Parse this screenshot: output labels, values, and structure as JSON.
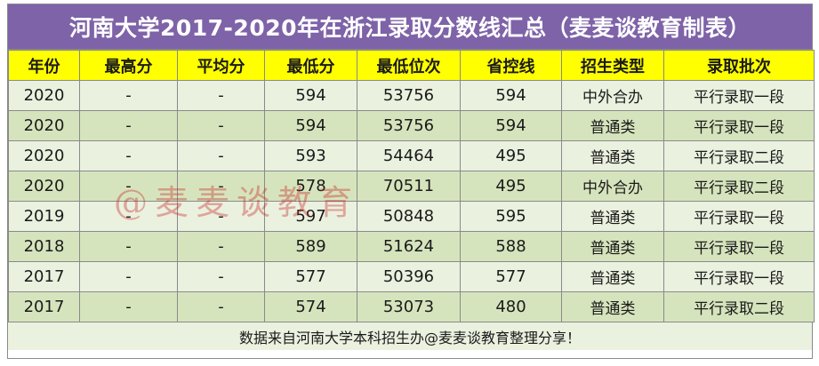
{
  "title": "河南大学2017-2020年在浙江录取分数线汇总（麦麦谈教育制表）",
  "columns": [
    "年份",
    "最高分",
    "平均分",
    "最低分",
    "最低位次",
    "省控线",
    "招生类型",
    "录取批次"
  ],
  "rows": [
    {
      "year": "2020",
      "max": "-",
      "avg": "-",
      "min": "594",
      "rank": "53756",
      "control": "594",
      "type": "中外合办",
      "batch": "平行录取一段"
    },
    {
      "year": "2020",
      "max": "-",
      "avg": "-",
      "min": "594",
      "rank": "53756",
      "control": "594",
      "type": "普通类",
      "batch": "平行录取一段"
    },
    {
      "year": "2020",
      "max": "-",
      "avg": "-",
      "min": "593",
      "rank": "54464",
      "control": "495",
      "type": "普通类",
      "batch": "平行录取二段"
    },
    {
      "year": "2020",
      "max": "-",
      "avg": "-",
      "min": "578",
      "rank": "70511",
      "control": "495",
      "type": "中外合办",
      "batch": "平行录取二段"
    },
    {
      "year": "2019",
      "max": "-",
      "avg": "-",
      "min": "597",
      "rank": "50848",
      "control": "595",
      "type": "普通类",
      "batch": "平行录取一段"
    },
    {
      "year": "2018",
      "max": "-",
      "avg": "-",
      "min": "589",
      "rank": "51624",
      "control": "588",
      "type": "普通类",
      "batch": "平行录取一段"
    },
    {
      "year": "2017",
      "max": "-",
      "avg": "-",
      "min": "577",
      "rank": "50396",
      "control": "577",
      "type": "普通类",
      "batch": "平行录取一段"
    },
    {
      "year": "2017",
      "max": "-",
      "avg": "-",
      "min": "574",
      "rank": "53073",
      "control": "480",
      "type": "普通类",
      "batch": "平行录取二段"
    }
  ],
  "footer": "数据来自河南大学本科招生办@麦麦谈教育整理分享！",
  "watermark": "@麦麦谈教育",
  "colors": {
    "title_bg": "#7e63a8",
    "header_bg": "#ffff00",
    "row_light": "#eaf1df",
    "row_dark": "#d6e4bd"
  }
}
